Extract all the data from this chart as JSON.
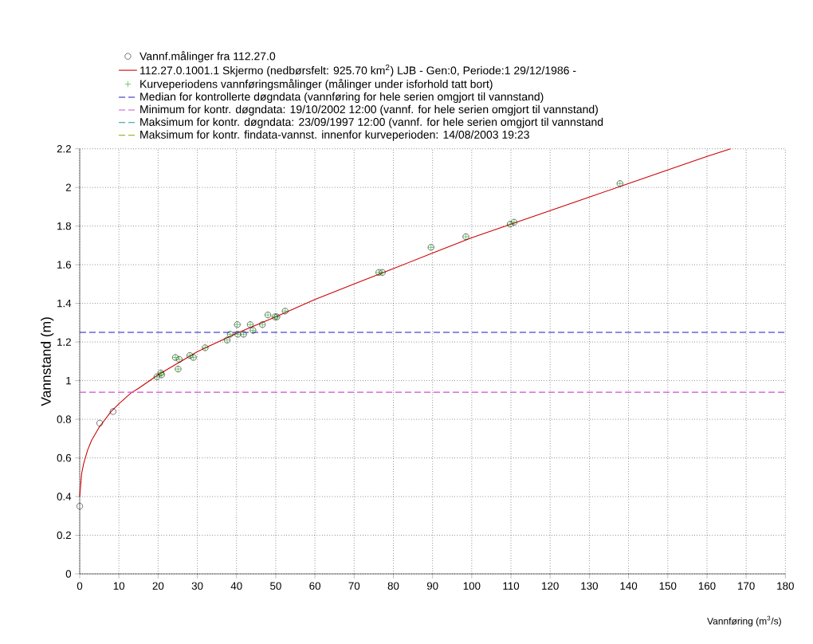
{
  "chart_data": {
    "type": "scatter",
    "xlabel": "Vannføring (m$^{3}$/s)",
    "ylabel": "Vannstand (m)",
    "xlim": [
      0,
      180
    ],
    "ylim": [
      0,
      2.2
    ],
    "xticks": [
      0,
      10,
      20,
      30,
      40,
      50,
      60,
      70,
      80,
      90,
      100,
      110,
      120,
      130,
      140,
      150,
      160,
      170,
      180
    ],
    "yticks": [
      0,
      0.2,
      0.4,
      0.6,
      0.8,
      1,
      1.2,
      1.4,
      1.6,
      1.8,
      2,
      2.2
    ],
    "grid": true,
    "legend": "top left",
    "series": [
      {
        "name": "Vannf.målinger fra 112.27.0",
        "marker": "circle",
        "color": "#000000",
        "x": [
          0,
          5.1,
          8.5,
          19.7,
          20.7,
          20.9,
          24.4,
          25.4,
          25.1,
          28.1,
          29.0,
          32.0,
          37.6,
          38.4,
          40.2,
          40.3,
          41.8,
          43.5,
          44.2,
          46.6,
          48.0,
          49.8,
          50.3,
          52.4,
          76.3,
          77.2,
          89.6,
          98.5,
          109.8,
          110.8,
          137.8
        ],
        "values": [
          0.35,
          0.78,
          0.84,
          1.02,
          1.04,
          1.03,
          1.12,
          1.11,
          1.06,
          1.13,
          1.12,
          1.17,
          1.21,
          1.24,
          1.29,
          1.24,
          1.24,
          1.29,
          1.26,
          1.29,
          1.34,
          1.33,
          1.33,
          1.36,
          1.56,
          1.56,
          1.69,
          1.745,
          1.81,
          1.82,
          2.02
        ]
      },
      {
        "name": "112.27.0.1001.1 Skjermo (nedbørsfelt:    925.70 km$^{2}$) LJB - Gen:0, Periode:1 29/12/1986 -",
        "type": "line",
        "line_style": "solid",
        "color": "#cc0000",
        "x": [
          0,
          0.5,
          1,
          2,
          3,
          5,
          8,
          10,
          13,
          15,
          20,
          25,
          30,
          40,
          50,
          60,
          70,
          80,
          90,
          100,
          110,
          120,
          130,
          140,
          150,
          160,
          166
        ],
        "values": [
          0.4,
          0.52,
          0.57,
          0.64,
          0.69,
          0.76,
          0.84,
          0.88,
          0.935,
          0.96,
          1.03,
          1.09,
          1.15,
          1.245,
          1.33,
          1.42,
          1.5,
          1.58,
          1.66,
          1.74,
          1.81,
          1.88,
          1.95,
          2.02,
          2.09,
          2.16,
          2.2
        ]
      },
      {
        "name": "Kurveperiodens vannføringsmålinger (målinger under isforhold tatt bort)",
        "marker": "cross",
        "color": "#00aa00",
        "x": [
          19.7,
          20.7,
          20.9,
          24.4,
          25.4,
          25.1,
          28.1,
          29.0,
          32.0,
          37.6,
          38.4,
          40.2,
          40.3,
          41.8,
          43.5,
          44.2,
          46.6,
          48.0,
          49.8,
          50.3,
          52.4,
          76.3,
          77.2,
          89.6,
          98.5,
          109.8,
          110.8,
          137.8
        ],
        "values": [
          1.02,
          1.04,
          1.03,
          1.12,
          1.11,
          1.06,
          1.13,
          1.12,
          1.17,
          1.21,
          1.24,
          1.29,
          1.24,
          1.24,
          1.29,
          1.26,
          1.29,
          1.34,
          1.33,
          1.33,
          1.36,
          1.56,
          1.56,
          1.69,
          1.745,
          1.81,
          1.82,
          2.02
        ]
      },
      {
        "name": "Median for kontrollerte døgndata (vannføring for hele serien omgjort til vannstand)",
        "type": "line",
        "line_style": "dashed",
        "color": "#1a1acc",
        "x": [
          0,
          180
        ],
        "values": [
          1.25,
          1.25
        ]
      },
      {
        "name": "Minimum for kontr. døgndata:  19/10/2002 12:00   (vannf. for hele serien omgjort til vannstand)",
        "type": "line",
        "line_style": "dashed",
        "color": "#d050d0",
        "x": [
          0,
          180
        ],
        "values": [
          0.94,
          0.94
        ]
      },
      {
        "name": "Maksimum for kontr. døgndata: 23/09/1997 12:00   (vannf. for hele serien omgjort til vannstand",
        "type": "line",
        "line_style": "dashed",
        "color": "#1a9aa0"
      },
      {
        "name": "Maksimum for kontr. findata-vannst. innenfor kurveperioden: 14/08/2003 19:23",
        "type": "line",
        "line_style": "dashed",
        "color": "#999900"
      }
    ]
  }
}
